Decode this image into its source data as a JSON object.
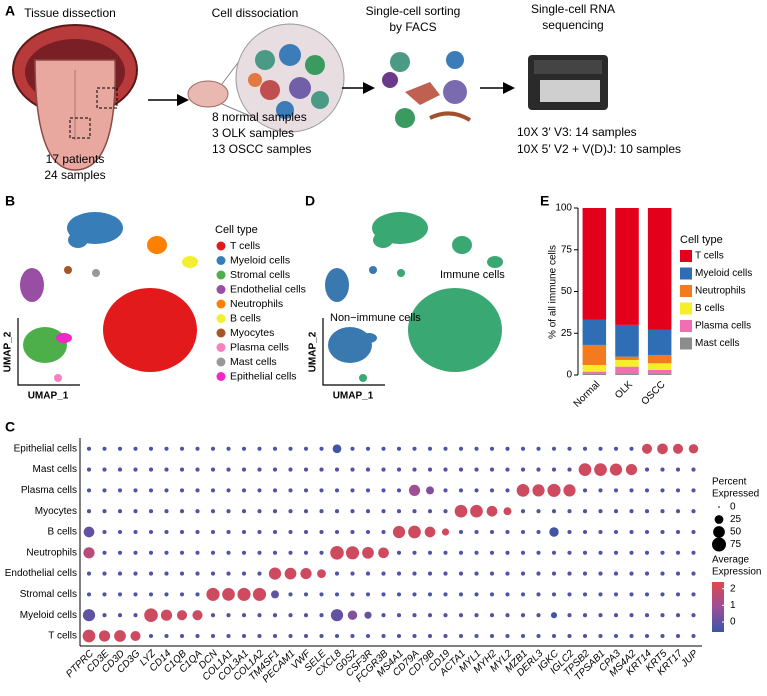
{
  "panel_labels": [
    "A",
    "B",
    "C",
    "D",
    "E"
  ],
  "panel_a": {
    "steps": [
      "Tissue dissection",
      "Cell dissociation",
      "Single-cell sorting",
      "by FACS",
      "Single-cell RNA",
      "sequencing"
    ],
    "patients": [
      "17 patients",
      "24 samples"
    ],
    "samples": [
      "8 normal samples",
      "3 OLK samples",
      "13 OSCC samples"
    ],
    "sequencing": [
      "10X 3′ V3: 14 samples",
      "10X 5′ V2 + V(D)J: 10 samples"
    ]
  },
  "panel_b": {
    "legend_title": "Cell type",
    "xlabel": "UMAP_1",
    "ylabel": "UMAP_2",
    "legend": [
      {
        "name": "T cells",
        "color": "#e31a1c"
      },
      {
        "name": "Myeloid cells",
        "color": "#377eb8"
      },
      {
        "name": "Stromal cells",
        "color": "#4daf4a"
      },
      {
        "name": "Endothelial cells",
        "color": "#984ea3"
      },
      {
        "name": "Neutrophils",
        "color": "#ff7f00"
      },
      {
        "name": "B cells",
        "color": "#f2ef2f"
      },
      {
        "name": "Myocytes",
        "color": "#a65628"
      },
      {
        "name": "Plasma cells",
        "color": "#f781bf"
      },
      {
        "name": "Mast cells",
        "color": "#999999"
      },
      {
        "name": "Epithelial cells",
        "color": "#f028c8"
      }
    ]
  },
  "panel_d": {
    "xlabel": "UMAP_1",
    "ylabel": "UMAP_2",
    "immune": {
      "name": "Immune cells",
      "color": "#3aa872"
    },
    "non_immune": {
      "name": "Non−immune cells",
      "color": "#3a78b0"
    }
  },
  "chart_data": [
    {
      "type": "stacked_bar",
      "ylabel": "% of all immune cells",
      "legend_title": "Cell type",
      "categories": [
        "Normal",
        "OLK",
        "OSCC"
      ],
      "series": [
        {
          "name": "T cells",
          "color": "#e3001b",
          "values": [
            67,
            70,
            73
          ]
        },
        {
          "name": "Myeloid cells",
          "color": "#2f6eb5",
          "values": [
            15,
            19,
            15
          ]
        },
        {
          "name": "Neutrophils",
          "color": "#f37b1d",
          "values": [
            12,
            2,
            5
          ]
        },
        {
          "name": "B cells",
          "color": "#f5ef2a",
          "values": [
            4,
            4,
            4
          ]
        },
        {
          "name": "Plasma cells",
          "color": "#ef6fb0",
          "values": [
            1,
            4,
            2
          ]
        },
        {
          "name": "Mast cells",
          "color": "#8c8c8c",
          "values": [
            1,
            1,
            1
          ]
        }
      ],
      "ylim": [
        0,
        100
      ],
      "yticks": [
        0,
        25,
        50,
        75,
        100
      ]
    },
    {
      "type": "dot",
      "genes": [
        "PTPRC",
        "CD3E",
        "CD3D",
        "CD3G",
        "LYZ",
        "CD14",
        "C1QB",
        "C1QA",
        "DCN",
        "COL1A1",
        "COL3A1",
        "COL1A2",
        "TM4SF1",
        "PECAM1",
        "VWF",
        "SELE",
        "CXCL8",
        "G0S2",
        "CSF3R",
        "FCGR3B",
        "MS4A1",
        "CD79A",
        "CD79B",
        "CD19",
        "ACTA1",
        "MYL1",
        "MYH2",
        "MYL2",
        "MZB1",
        "DERL3",
        "IGKC",
        "IGLC2",
        "TPSB2",
        "TPSAB1",
        "CPA3",
        "MS4A2",
        "KRT14",
        "KRT5",
        "KRT17",
        "JUP"
      ],
      "series": [
        {
          "name": "T cells",
          "values": [
            60,
            45,
            50,
            35,
            3,
            3,
            3,
            3,
            3,
            3,
            3,
            3,
            3,
            3,
            3,
            3,
            3,
            3,
            3,
            3,
            3,
            3,
            3,
            3,
            3,
            3,
            3,
            3,
            3,
            3,
            3,
            3,
            3,
            3,
            3,
            3,
            3,
            3,
            3,
            3
          ],
          "expression": [
            2,
            2,
            2,
            2,
            -0.3,
            -0.3,
            -0.3,
            -0.3,
            -0.3,
            -0.3,
            -0.3,
            -0.3,
            -0.3,
            -0.3,
            -0.3,
            -0.3,
            -0.3,
            -0.3,
            -0.3,
            -0.3,
            -0.3,
            -0.3,
            -0.3,
            -0.3,
            -0.3,
            -0.3,
            -0.3,
            -0.3,
            -0.3,
            -0.3,
            -0.3,
            -0.3,
            -0.3,
            -0.3,
            -0.3,
            -0.3,
            -0.3,
            -0.3,
            -0.3,
            -0.3
          ]
        },
        {
          "name": "Myeloid cells",
          "values": [
            55,
            3,
            3,
            3,
            70,
            45,
            35,
            35,
            3,
            3,
            3,
            3,
            3,
            3,
            3,
            3,
            55,
            30,
            15,
            3,
            3,
            3,
            3,
            3,
            3,
            3,
            3,
            3,
            3,
            3,
            10,
            3,
            3,
            3,
            3,
            3,
            3,
            3,
            3,
            3
          ],
          "expression": [
            0,
            -0.3,
            -0.3,
            -0.3,
            2,
            2,
            2,
            2,
            -0.3,
            -0.3,
            -0.3,
            -0.3,
            -0.3,
            -0.3,
            -0.3,
            -0.3,
            0,
            0.5,
            0,
            -0.3,
            -0.3,
            -0.3,
            -0.3,
            -0.3,
            -0.3,
            -0.3,
            -0.3,
            -0.3,
            -0.3,
            -0.3,
            -0.5,
            -0.3,
            -0.3,
            -0.3,
            -0.3,
            -0.3,
            -0.3,
            -0.3,
            -0.3,
            -0.3
          ]
        },
        {
          "name": "Stromal cells",
          "values": [
            3,
            3,
            3,
            3,
            3,
            3,
            3,
            3,
            65,
            60,
            65,
            65,
            20,
            3,
            3,
            3,
            3,
            3,
            3,
            3,
            3,
            3,
            3,
            3,
            3,
            3,
            3,
            3,
            3,
            3,
            3,
            3,
            3,
            3,
            3,
            3,
            3,
            3,
            3,
            3
          ],
          "expression": [
            -0.3,
            -0.3,
            -0.3,
            -0.3,
            -0.3,
            -0.3,
            -0.3,
            -0.3,
            2,
            2,
            2,
            2,
            0,
            -0.3,
            -0.3,
            -0.3,
            -0.3,
            -0.3,
            -0.3,
            -0.3,
            -0.3,
            -0.3,
            -0.3,
            -0.3,
            -0.3,
            -0.3,
            -0.3,
            -0.3,
            -0.3,
            -0.3,
            -0.3,
            -0.3,
            -0.3,
            -0.3,
            -0.3,
            -0.3,
            -0.3,
            -0.3,
            -0.3,
            -0.3
          ]
        },
        {
          "name": "Endothelial cells",
          "values": [
            3,
            3,
            3,
            3,
            3,
            3,
            3,
            3,
            3,
            3,
            3,
            3,
            55,
            50,
            45,
            25,
            3,
            3,
            3,
            3,
            3,
            3,
            3,
            3,
            3,
            3,
            3,
            3,
            3,
            3,
            3,
            3,
            3,
            3,
            3,
            3,
            3,
            3,
            3,
            3
          ],
          "expression": [
            -0.3,
            -0.3,
            -0.3,
            -0.3,
            -0.3,
            -0.3,
            -0.3,
            -0.3,
            -0.3,
            -0.3,
            -0.3,
            -0.3,
            2,
            2,
            2,
            2,
            -0.3,
            -0.3,
            -0.3,
            -0.3,
            -0.3,
            -0.3,
            -0.3,
            -0.3,
            -0.3,
            -0.3,
            -0.3,
            -0.3,
            -0.3,
            -0.3,
            -0.3,
            -0.3,
            -0.3,
            -0.3,
            -0.3,
            -0.3,
            -0.3,
            -0.3,
            -0.3,
            -0.3
          ]
        },
        {
          "name": "Neutrophils",
          "values": [
            45,
            3,
            3,
            3,
            3,
            3,
            3,
            3,
            3,
            3,
            3,
            3,
            3,
            3,
            3,
            3,
            70,
            65,
            50,
            40,
            3,
            3,
            3,
            3,
            3,
            3,
            3,
            3,
            3,
            3,
            3,
            3,
            3,
            3,
            3,
            3,
            3,
            3,
            3,
            3
          ],
          "expression": [
            1.5,
            -0.3,
            -0.3,
            -0.3,
            -0.3,
            -0.3,
            -0.3,
            -0.3,
            -0.3,
            -0.3,
            -0.3,
            -0.3,
            -0.3,
            -0.3,
            -0.3,
            -0.3,
            2,
            2,
            2,
            2,
            -0.3,
            -0.3,
            -0.3,
            -0.3,
            -0.3,
            -0.3,
            -0.3,
            -0.3,
            -0.3,
            -0.3,
            -0.3,
            -0.3,
            -0.3,
            -0.3,
            -0.3,
            -0.3,
            -0.3,
            -0.3,
            -0.3,
            -0.3
          ]
        },
        {
          "name": "B cells",
          "values": [
            40,
            3,
            3,
            3,
            3,
            3,
            3,
            3,
            3,
            3,
            3,
            3,
            3,
            3,
            3,
            3,
            3,
            3,
            3,
            3,
            55,
            60,
            40,
            15,
            3,
            3,
            3,
            3,
            3,
            3,
            30,
            3,
            3,
            3,
            3,
            3,
            3,
            3,
            3,
            3
          ],
          "expression": [
            0,
            -0.3,
            -0.3,
            -0.3,
            -0.3,
            -0.3,
            -0.3,
            -0.3,
            -0.3,
            -0.3,
            -0.3,
            -0.3,
            -0.3,
            -0.3,
            -0.3,
            -0.3,
            -0.3,
            -0.3,
            -0.3,
            -0.3,
            2,
            2,
            2,
            2,
            -0.3,
            -0.3,
            -0.3,
            -0.3,
            -0.3,
            -0.3,
            -0.5,
            -0.3,
            -0.3,
            -0.3,
            -0.3,
            -0.3,
            -0.3,
            -0.3,
            -0.3,
            -0.3
          ]
        },
        {
          "name": "Myocytes",
          "values": [
            3,
            3,
            3,
            3,
            3,
            3,
            3,
            3,
            3,
            3,
            3,
            3,
            3,
            3,
            3,
            3,
            3,
            3,
            3,
            3,
            3,
            3,
            3,
            3,
            60,
            60,
            40,
            20,
            3,
            3,
            3,
            3,
            3,
            3,
            3,
            3,
            3,
            3,
            3,
            3
          ],
          "expression": [
            -0.3,
            -0.3,
            -0.3,
            -0.3,
            -0.3,
            -0.3,
            -0.3,
            -0.3,
            -0.3,
            -0.3,
            -0.3,
            -0.3,
            -0.3,
            -0.3,
            -0.3,
            -0.3,
            -0.3,
            -0.3,
            -0.3,
            -0.3,
            -0.3,
            -0.3,
            -0.3,
            -0.3,
            2,
            2,
            2,
            2,
            -0.3,
            -0.3,
            -0.3,
            -0.3,
            -0.3,
            -0.3,
            -0.3,
            -0.3,
            -0.3,
            -0.3,
            -0.3,
            -0.3
          ]
        },
        {
          "name": "Plasma cells",
          "values": [
            3,
            3,
            3,
            3,
            3,
            3,
            3,
            3,
            3,
            3,
            3,
            3,
            3,
            3,
            3,
            3,
            3,
            3,
            3,
            3,
            3,
            45,
            20,
            3,
            3,
            3,
            3,
            3,
            60,
            55,
            65,
            55,
            3,
            3,
            3,
            3,
            3,
            3,
            3,
            3
          ],
          "expression": [
            -0.3,
            -0.3,
            -0.3,
            -0.3,
            -0.3,
            -0.3,
            -0.3,
            -0.3,
            -0.3,
            -0.3,
            -0.3,
            -0.3,
            -0.3,
            -0.3,
            -0.3,
            -0.3,
            -0.3,
            -0.3,
            -0.3,
            -0.3,
            -0.3,
            1,
            0.5,
            -0.3,
            -0.3,
            -0.3,
            -0.3,
            -0.3,
            2,
            2,
            2,
            2,
            -0.3,
            -0.3,
            -0.3,
            -0.3,
            -0.3,
            -0.3,
            -0.3,
            -0.3
          ]
        },
        {
          "name": "Mast cells",
          "values": [
            3,
            3,
            3,
            3,
            3,
            3,
            3,
            3,
            3,
            3,
            3,
            3,
            3,
            3,
            3,
            3,
            3,
            3,
            3,
            3,
            3,
            3,
            3,
            3,
            3,
            3,
            3,
            3,
            3,
            3,
            3,
            3,
            60,
            60,
            55,
            45,
            3,
            3,
            3,
            3
          ],
          "expression": [
            -0.3,
            -0.3,
            -0.3,
            -0.3,
            -0.3,
            -0.3,
            -0.3,
            -0.3,
            -0.3,
            -0.3,
            -0.3,
            -0.3,
            -0.3,
            -0.3,
            -0.3,
            -0.3,
            -0.3,
            -0.3,
            -0.3,
            -0.3,
            -0.3,
            -0.3,
            -0.3,
            -0.3,
            -0.3,
            -0.3,
            -0.3,
            -0.3,
            -0.3,
            -0.3,
            -0.3,
            -0.3,
            2,
            2,
            2,
            2,
            -0.3,
            -0.3,
            -0.3,
            -0.3
          ]
        },
        {
          "name": "Epithelial cells",
          "values": [
            3,
            3,
            3,
            3,
            3,
            3,
            3,
            3,
            3,
            3,
            3,
            3,
            3,
            3,
            3,
            3,
            25,
            3,
            3,
            3,
            3,
            3,
            3,
            3,
            3,
            3,
            3,
            3,
            3,
            3,
            3,
            3,
            3,
            3,
            3,
            3,
            35,
            40,
            35,
            30
          ],
          "expression": [
            -0.3,
            -0.3,
            -0.3,
            -0.3,
            -0.3,
            -0.3,
            -0.3,
            -0.3,
            -0.3,
            -0.3,
            -0.3,
            -0.3,
            -0.3,
            -0.3,
            -0.3,
            -0.3,
            -0.5,
            -0.3,
            -0.3,
            -0.3,
            -0.3,
            -0.3,
            -0.3,
            -0.3,
            -0.3,
            -0.3,
            -0.3,
            -0.3,
            -0.3,
            -0.3,
            -0.3,
            -0.3,
            -0.3,
            -0.3,
            -0.3,
            -0.3,
            2,
            2,
            2,
            2
          ]
        }
      ],
      "size_title": [
        "Percent",
        "Expressed"
      ],
      "size_lim": [
        0,
        75
      ],
      "size_ticks": [
        0,
        25,
        50,
        75
      ],
      "color_title": [
        "Average",
        "Expression"
      ],
      "clim": [
        -0.6,
        2.4
      ],
      "cticks": [
        0,
        1,
        2
      ],
      "colors": [
        "#3b55a6",
        "#9b4f99",
        "#e0484a"
      ]
    }
  ]
}
